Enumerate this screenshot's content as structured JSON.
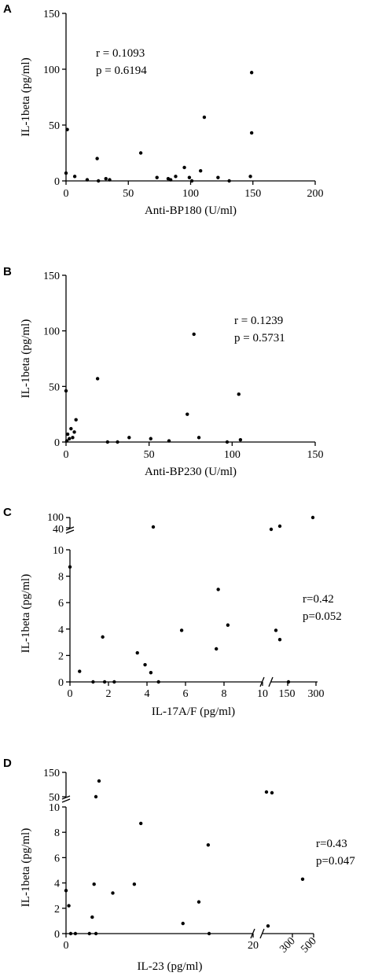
{
  "chart_data": [
    {
      "panel": "A",
      "type": "scatter",
      "xlabel": "Anti-BP180 (U/ml)",
      "ylabel": "IL-1beta (pg/ml)",
      "xlim": [
        0,
        200
      ],
      "ylim": [
        0,
        150
      ],
      "xticks": [
        0,
        50,
        100,
        150,
        200
      ],
      "yticks": [
        0,
        50,
        100,
        150
      ],
      "annotation": [
        "r = 0.1093",
        "p = 0.6194"
      ],
      "points": [
        [
          0,
          7
        ],
        [
          1,
          46
        ],
        [
          7,
          4
        ],
        [
          17,
          1
        ],
        [
          25,
          20
        ],
        [
          26,
          0
        ],
        [
          32,
          2
        ],
        [
          35,
          1
        ],
        [
          60,
          25
        ],
        [
          73,
          3
        ],
        [
          82,
          2
        ],
        [
          84,
          1
        ],
        [
          88,
          4
        ],
        [
          95,
          12
        ],
        [
          99,
          3
        ],
        [
          101,
          0
        ],
        [
          108,
          9
        ],
        [
          111,
          57
        ],
        [
          122,
          3
        ],
        [
          131,
          0
        ],
        [
          148,
          4
        ],
        [
          149,
          43
        ],
        [
          149,
          97
        ]
      ]
    },
    {
      "panel": "B",
      "type": "scatter",
      "xlabel": "Anti-BP230 (U/ml)",
      "ylabel": "IL-1beta (pg/ml)",
      "xlim": [
        0,
        150
      ],
      "ylim": [
        0,
        150
      ],
      "xticks": [
        0,
        50,
        100,
        150
      ],
      "yticks": [
        0,
        50,
        100,
        150
      ],
      "annotation": [
        "r = 0.1239",
        "p = 0.5731"
      ],
      "points": [
        [
          0,
          46
        ],
        [
          0.5,
          1
        ],
        [
          1,
          7
        ],
        [
          2,
          3
        ],
        [
          3,
          12
        ],
        [
          4,
          4
        ],
        [
          5,
          9
        ],
        [
          6,
          20
        ],
        [
          19,
          57
        ],
        [
          25,
          0
        ],
        [
          31,
          0
        ],
        [
          38,
          4
        ],
        [
          51,
          3
        ],
        [
          62,
          1
        ],
        [
          73,
          25
        ],
        [
          77,
          97
        ],
        [
          80,
          4
        ],
        [
          97,
          0
        ],
        [
          104,
          43
        ],
        [
          105,
          2
        ]
      ]
    },
    {
      "panel": "C",
      "type": "scatter",
      "xlabel": "IL-17A/F (pg/ml)",
      "ylabel": "IL-1beta (pg/ml)",
      "x_segments": [
        {
          "range": [
            0,
            10
          ],
          "ticks": [
            0,
            2,
            4,
            6,
            8,
            10
          ]
        },
        {
          "range": [
            10,
            300
          ],
          "ticks": [
            "150",
            "300"
          ]
        }
      ],
      "y_segments": [
        {
          "range": [
            0,
            10
          ],
          "ticks": [
            0,
            2,
            4,
            6,
            8,
            10
          ]
        },
        {
          "range": [
            40,
            100
          ],
          "ticks": [
            "40",
            "100"
          ]
        }
      ],
      "annotation": [
        "r=0.42",
        "p=0.052"
      ],
      "points_low": [
        [
          0,
          8.7
        ],
        [
          0.5,
          0.8
        ],
        [
          1.2,
          0
        ],
        [
          1.7,
          3.4
        ],
        [
          1.8,
          0
        ],
        [
          2.3,
          0
        ],
        [
          3.5,
          2.2
        ],
        [
          3.9,
          1.3
        ],
        [
          4.2,
          0.7
        ],
        [
          4.6,
          0
        ],
        [
          5.8,
          3.9
        ],
        [
          7.6,
          2.5
        ],
        [
          7.7,
          7.0
        ],
        [
          8.2,
          4.3
        ]
      ],
      "points_high": [
        [
          4.5,
          "40+"
        ],
        [
          11.2,
          3.9
        ],
        [
          11.3,
          3.2
        ],
        [
          12.6,
          0
        ]
      ],
      "points_top": [
        [
          4.5,
          45
        ],
        [
          110,
          42
        ],
        [
          120,
          46
        ],
        [
          290,
          98
        ]
      ]
    },
    {
      "panel": "D",
      "type": "scatter",
      "xlabel": "IL-23 (pg/ml)",
      "ylabel": "IL-1beta (pg/ml)",
      "x_segments": [
        {
          "range": [
            0,
            20
          ],
          "ticks": [
            0,
            20
          ]
        },
        {
          "range": [
            20,
            500
          ],
          "ticks": [
            "300",
            "500"
          ]
        }
      ],
      "y_segments": [
        {
          "range": [
            0,
            10
          ],
          "ticks": [
            0,
            2,
            4,
            6,
            8,
            10
          ]
        },
        {
          "range": [
            50,
            150
          ],
          "ticks": [
            "50",
            "150"
          ]
        }
      ],
      "annotation": [
        "r=0.43",
        "p=0.047"
      ],
      "points_low": [
        [
          0,
          3.4
        ],
        [
          0.3,
          2.2
        ],
        [
          0.5,
          0
        ],
        [
          1,
          0
        ],
        [
          2.5,
          0
        ],
        [
          2.8,
          1.3
        ],
        [
          3,
          3.9
        ],
        [
          3.2,
          0
        ],
        [
          5,
          3.2
        ],
        [
          7.3,
          3.9
        ],
        [
          8,
          8.7
        ],
        [
          12.5,
          0.8
        ],
        [
          14.2,
          2.5
        ],
        [
          15.2,
          7.0
        ],
        [
          15.3,
          0
        ]
      ],
      "points_broken_x": [
        [
          0.2,
          0.6
        ],
        [
          0.95,
          4.3
        ]
      ],
      "points_top": [
        [
          3.5,
          40
        ],
        [
          3.8,
          100
        ],
        [
          0.15,
          48
        ],
        [
          0.3,
          46
        ]
      ]
    }
  ]
}
